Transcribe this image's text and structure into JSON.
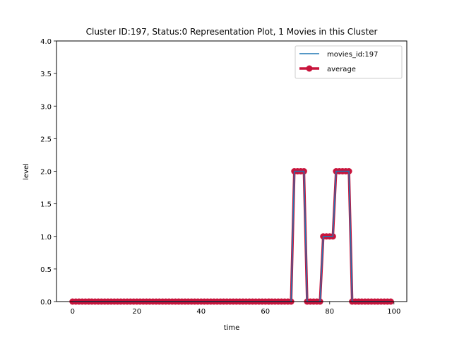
{
  "chart_data": {
    "type": "line",
    "title": "Cluster ID:197, Status:0 Representation Plot, 1 Movies in this Cluster",
    "xlabel": "time",
    "ylabel": "level",
    "xlim": [
      -5,
      104
    ],
    "ylim": [
      0,
      4
    ],
    "xticks": [
      0,
      20,
      40,
      60,
      80,
      100
    ],
    "yticks": [
      0.0,
      0.5,
      1.0,
      1.5,
      2.0,
      2.5,
      3.0,
      3.5,
      4.0
    ],
    "xtick_labels": [
      "0",
      "20",
      "40",
      "60",
      "80",
      "100"
    ],
    "ytick_labels": [
      "0.0",
      "0.5",
      "1.0",
      "1.5",
      "2.0",
      "2.5",
      "3.0",
      "3.5",
      "4.0"
    ],
    "grid": false,
    "legend_position": "upper right",
    "series": [
      {
        "name": "movies_id:197",
        "color": "#1f77b4",
        "marker": "none",
        "x": [
          0,
          1,
          2,
          3,
          4,
          5,
          6,
          7,
          8,
          9,
          10,
          11,
          12,
          13,
          14,
          15,
          16,
          17,
          18,
          19,
          20,
          21,
          22,
          23,
          24,
          25,
          26,
          27,
          28,
          29,
          30,
          31,
          32,
          33,
          34,
          35,
          36,
          37,
          38,
          39,
          40,
          41,
          42,
          43,
          44,
          45,
          46,
          47,
          48,
          49,
          50,
          51,
          52,
          53,
          54,
          55,
          56,
          57,
          58,
          59,
          60,
          61,
          62,
          63,
          64,
          65,
          66,
          67,
          68,
          69,
          70,
          71,
          72,
          73,
          74,
          75,
          76,
          77,
          78,
          79,
          80,
          81,
          82,
          83,
          84,
          85,
          86,
          87,
          88,
          89,
          90,
          91,
          92,
          93,
          94,
          95,
          96,
          97,
          98,
          99
        ],
        "y": [
          0,
          0,
          0,
          0,
          0,
          0,
          0,
          0,
          0,
          0,
          0,
          0,
          0,
          0,
          0,
          0,
          0,
          0,
          0,
          0,
          0,
          0,
          0,
          0,
          0,
          0,
          0,
          0,
          0,
          0,
          0,
          0,
          0,
          0,
          0,
          0,
          0,
          0,
          0,
          0,
          0,
          0,
          0,
          0,
          0,
          0,
          0,
          0,
          0,
          0,
          0,
          0,
          0,
          0,
          0,
          0,
          0,
          0,
          0,
          0,
          0,
          0,
          0,
          0,
          0,
          0,
          0,
          0,
          0,
          2,
          2,
          2,
          2,
          0,
          0,
          0,
          0,
          0,
          1,
          1,
          1,
          1,
          2,
          2,
          2,
          2,
          2,
          0,
          0,
          0,
          0,
          0,
          0,
          0,
          0,
          0,
          0,
          0,
          0,
          0
        ]
      },
      {
        "name": "average",
        "color": "#c8143c",
        "marker": "o",
        "x": [
          0,
          1,
          2,
          3,
          4,
          5,
          6,
          7,
          8,
          9,
          10,
          11,
          12,
          13,
          14,
          15,
          16,
          17,
          18,
          19,
          20,
          21,
          22,
          23,
          24,
          25,
          26,
          27,
          28,
          29,
          30,
          31,
          32,
          33,
          34,
          35,
          36,
          37,
          38,
          39,
          40,
          41,
          42,
          43,
          44,
          45,
          46,
          47,
          48,
          49,
          50,
          51,
          52,
          53,
          54,
          55,
          56,
          57,
          58,
          59,
          60,
          61,
          62,
          63,
          64,
          65,
          66,
          67,
          68,
          69,
          70,
          71,
          72,
          73,
          74,
          75,
          76,
          77,
          78,
          79,
          80,
          81,
          82,
          83,
          84,
          85,
          86,
          87,
          88,
          89,
          90,
          91,
          92,
          93,
          94,
          95,
          96,
          97,
          98,
          99
        ],
        "y": [
          0,
          0,
          0,
          0,
          0,
          0,
          0,
          0,
          0,
          0,
          0,
          0,
          0,
          0,
          0,
          0,
          0,
          0,
          0,
          0,
          0,
          0,
          0,
          0,
          0,
          0,
          0,
          0,
          0,
          0,
          0,
          0,
          0,
          0,
          0,
          0,
          0,
          0,
          0,
          0,
          0,
          0,
          0,
          0,
          0,
          0,
          0,
          0,
          0,
          0,
          0,
          0,
          0,
          0,
          0,
          0,
          0,
          0,
          0,
          0,
          0,
          0,
          0,
          0,
          0,
          0,
          0,
          0,
          0,
          2,
          2,
          2,
          2,
          0,
          0,
          0,
          0,
          0,
          1,
          1,
          1,
          1,
          2,
          2,
          2,
          2,
          2,
          0,
          0,
          0,
          0,
          0,
          0,
          0,
          0,
          0,
          0,
          0,
          0,
          0
        ]
      }
    ]
  }
}
